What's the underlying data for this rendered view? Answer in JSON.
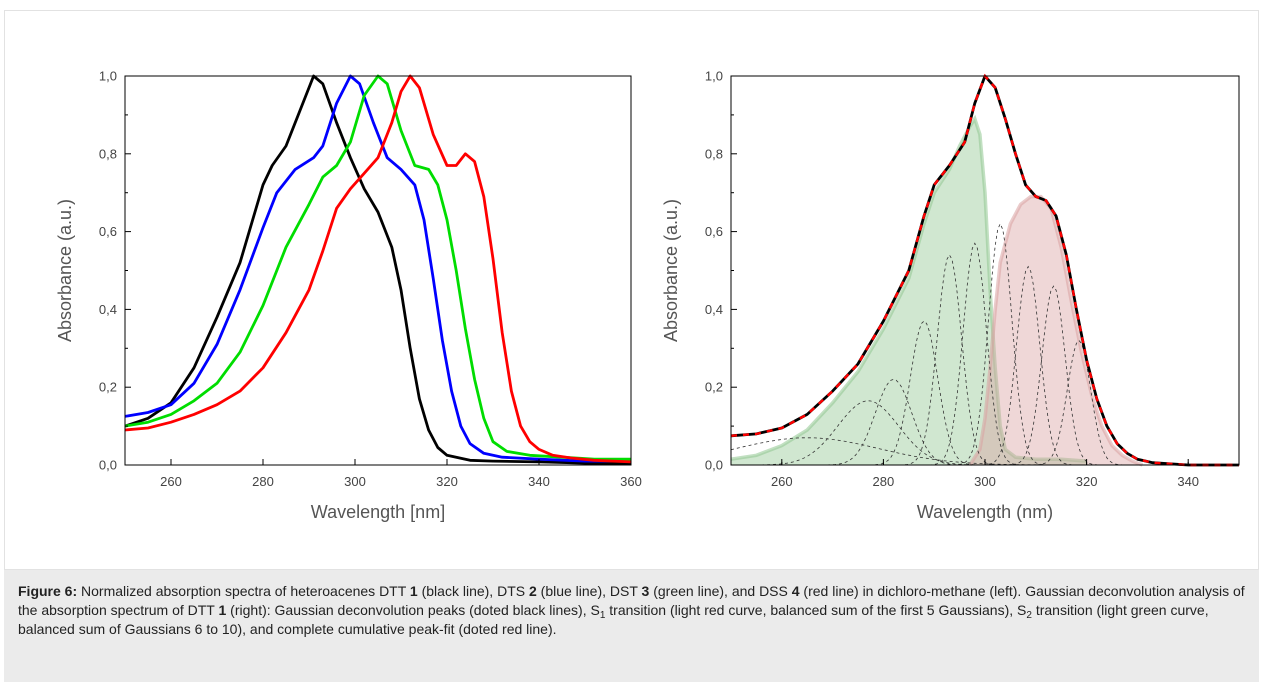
{
  "chart_data": [
    {
      "type": "line",
      "title": "",
      "xlabel": "Wavelength [nm]",
      "ylabel": "Absorbance (a.u.)",
      "xlim": [
        250,
        360
      ],
      "ylim": [
        0,
        1.0
      ],
      "x_ticks": [
        "260",
        "280",
        "300",
        "320",
        "340",
        "360"
      ],
      "y_ticks": [
        "0,0",
        "0,2",
        "0,4",
        "0,6",
        "0,8",
        "1,0"
      ],
      "grid": false,
      "series": [
        {
          "color": "#000000",
          "points": [
            [
              250,
              0.1
            ],
            [
              255,
              0.12
            ],
            [
              260,
              0.16
            ],
            [
              265,
              0.25
            ],
            [
              270,
              0.38
            ],
            [
              275,
              0.52
            ],
            [
              280,
              0.72
            ],
            [
              282,
              0.77
            ],
            [
              285,
              0.82
            ],
            [
              288,
              0.91
            ],
            [
              291,
              1.0
            ],
            [
              293,
              0.98
            ],
            [
              296,
              0.88
            ],
            [
              299,
              0.79
            ],
            [
              302,
              0.71
            ],
            [
              305,
              0.65
            ],
            [
              308,
              0.56
            ],
            [
              310,
              0.45
            ],
            [
              312,
              0.3
            ],
            [
              314,
              0.17
            ],
            [
              316,
              0.09
            ],
            [
              318,
              0.045
            ],
            [
              320,
              0.025
            ],
            [
              325,
              0.012
            ],
            [
              330,
              0.01
            ],
            [
              340,
              0.008
            ],
            [
              350,
              0.005
            ],
            [
              360,
              0.003
            ]
          ]
        },
        {
          "color": "#0000ff",
          "points": [
            [
              250,
              0.125
            ],
            [
              255,
              0.135
            ],
            [
              260,
              0.155
            ],
            [
              265,
              0.21
            ],
            [
              270,
              0.31
            ],
            [
              275,
              0.45
            ],
            [
              280,
              0.61
            ],
            [
              283,
              0.7
            ],
            [
              287,
              0.76
            ],
            [
              291,
              0.79
            ],
            [
              293,
              0.82
            ],
            [
              296,
              0.93
            ],
            [
              299,
              1.0
            ],
            [
              301,
              0.98
            ],
            [
              304,
              0.88
            ],
            [
              307,
              0.79
            ],
            [
              310,
              0.76
            ],
            [
              313,
              0.72
            ],
            [
              315,
              0.63
            ],
            [
              317,
              0.48
            ],
            [
              319,
              0.32
            ],
            [
              321,
              0.19
            ],
            [
              323,
              0.1
            ],
            [
              325,
              0.055
            ],
            [
              328,
              0.03
            ],
            [
              332,
              0.02
            ],
            [
              340,
              0.015
            ],
            [
              350,
              0.01
            ],
            [
              360,
              0.01
            ]
          ]
        },
        {
          "color": "#00dd00",
          "points": [
            [
              250,
              0.1
            ],
            [
              255,
              0.11
            ],
            [
              260,
              0.13
            ],
            [
              265,
              0.165
            ],
            [
              270,
              0.21
            ],
            [
              275,
              0.29
            ],
            [
              280,
              0.41
            ],
            [
              285,
              0.56
            ],
            [
              290,
              0.67
            ],
            [
              293,
              0.74
            ],
            [
              296,
              0.77
            ],
            [
              299,
              0.83
            ],
            [
              302,
              0.95
            ],
            [
              305,
              1.0
            ],
            [
              307,
              0.98
            ],
            [
              310,
              0.86
            ],
            [
              313,
              0.77
            ],
            [
              316,
              0.76
            ],
            [
              318,
              0.72
            ],
            [
              320,
              0.63
            ],
            [
              322,
              0.5
            ],
            [
              324,
              0.35
            ],
            [
              326,
              0.22
            ],
            [
              328,
              0.12
            ],
            [
              330,
              0.06
            ],
            [
              333,
              0.035
            ],
            [
              338,
              0.025
            ],
            [
              345,
              0.02
            ],
            [
              352,
              0.015
            ],
            [
              360,
              0.015
            ]
          ]
        },
        {
          "color": "#ff0000",
          "points": [
            [
              250,
              0.09
            ],
            [
              255,
              0.095
            ],
            [
              260,
              0.11
            ],
            [
              265,
              0.13
            ],
            [
              270,
              0.155
            ],
            [
              275,
              0.19
            ],
            [
              280,
              0.25
            ],
            [
              285,
              0.34
            ],
            [
              290,
              0.45
            ],
            [
              293,
              0.55
            ],
            [
              296,
              0.66
            ],
            [
              299,
              0.71
            ],
            [
              302,
              0.75
            ],
            [
              305,
              0.79
            ],
            [
              308,
              0.88
            ],
            [
              310,
              0.96
            ],
            [
              312,
              1.0
            ],
            [
              314,
              0.97
            ],
            [
              317,
              0.85
            ],
            [
              320,
              0.77
            ],
            [
              322,
              0.77
            ],
            [
              324,
              0.8
            ],
            [
              326,
              0.78
            ],
            [
              328,
              0.69
            ],
            [
              330,
              0.53
            ],
            [
              332,
              0.34
            ],
            [
              334,
              0.19
            ],
            [
              336,
              0.1
            ],
            [
              338,
              0.06
            ],
            [
              340,
              0.04
            ],
            [
              343,
              0.025
            ],
            [
              347,
              0.018
            ],
            [
              352,
              0.012
            ],
            [
              360,
              0.008
            ]
          ]
        }
      ]
    },
    {
      "type": "line",
      "title": "",
      "xlabel": "Wavelength (nm)",
      "ylabel": "Absorbance (a.u.)",
      "xlim": [
        250,
        350
      ],
      "ylim": [
        0,
        1.0
      ],
      "x_ticks": [
        "260",
        "280",
        "300",
        "320",
        "340"
      ],
      "y_ticks": [
        "0,0",
        "0,2",
        "0,4",
        "0,6",
        "0,8",
        "1,0"
      ],
      "grid": false,
      "series": [
        {
          "color": "#000000",
          "dashed_overlay_color": "#ff0000",
          "points": [
            [
              250,
              0.075
            ],
            [
              255,
              0.08
            ],
            [
              260,
              0.095
            ],
            [
              265,
              0.13
            ],
            [
              270,
              0.19
            ],
            [
              275,
              0.26
            ],
            [
              280,
              0.37
            ],
            [
              285,
              0.5
            ],
            [
              288,
              0.64
            ],
            [
              290,
              0.72
            ],
            [
              293,
              0.77
            ],
            [
              296,
              0.83
            ],
            [
              298,
              0.93
            ],
            [
              300,
              1.0
            ],
            [
              302,
              0.97
            ],
            [
              304,
              0.89
            ],
            [
              306,
              0.8
            ],
            [
              308,
              0.72
            ],
            [
              310,
              0.69
            ],
            [
              312,
              0.68
            ],
            [
              314,
              0.64
            ],
            [
              316,
              0.54
            ],
            [
              318,
              0.4
            ],
            [
              320,
              0.27
            ],
            [
              322,
              0.17
            ],
            [
              324,
              0.1
            ],
            [
              326,
              0.055
            ],
            [
              328,
              0.03
            ],
            [
              330,
              0.015
            ],
            [
              333,
              0.006
            ],
            [
              340,
              0.0
            ],
            [
              350,
              0.0
            ]
          ]
        }
      ],
      "filled_areas": [
        {
          "color": "#8fc68f",
          "points": [
            [
              250,
              0.015
            ],
            [
              255,
              0.025
            ],
            [
              260,
              0.05
            ],
            [
              265,
              0.09
            ],
            [
              270,
              0.16
            ],
            [
              275,
              0.24
            ],
            [
              280,
              0.35
            ],
            [
              285,
              0.48
            ],
            [
              288,
              0.62
            ],
            [
              290,
              0.7
            ],
            [
              293,
              0.76
            ],
            [
              295,
              0.82
            ],
            [
              297,
              0.87
            ],
            [
              298,
              0.89
            ],
            [
              299,
              0.85
            ],
            [
              300,
              0.7
            ],
            [
              301,
              0.45
            ],
            [
              302,
              0.25
            ],
            [
              303,
              0.1
            ],
            [
              304,
              0.04
            ],
            [
              306,
              0.02
            ],
            [
              310,
              0.015
            ],
            [
              315,
              0.015
            ],
            [
              320,
              0.01
            ]
          ]
        },
        {
          "color": "#d9a0a0",
          "points": [
            [
              297,
              0.0
            ],
            [
              299,
              0.04
            ],
            [
              300,
              0.12
            ],
            [
              301,
              0.25
            ],
            [
              302,
              0.4
            ],
            [
              303,
              0.52
            ],
            [
              305,
              0.62
            ],
            [
              307,
              0.67
            ],
            [
              309,
              0.69
            ],
            [
              311,
              0.69
            ],
            [
              313,
              0.66
            ],
            [
              315,
              0.56
            ],
            [
              317,
              0.42
            ],
            [
              319,
              0.29
            ],
            [
              321,
              0.18
            ],
            [
              323,
              0.1
            ],
            [
              325,
              0.05
            ],
            [
              327,
              0.025
            ],
            [
              329,
              0.01
            ],
            [
              331,
              0.0
            ]
          ]
        }
      ],
      "gaussians": [
        {
          "center": 265,
          "amplitude": 0.07,
          "width": 14
        },
        {
          "center": 277,
          "amplitude": 0.165,
          "width": 6.0
        },
        {
          "center": 282,
          "amplitude": 0.22,
          "width": 3.6
        },
        {
          "center": 288,
          "amplitude": 0.37,
          "width": 2.7
        },
        {
          "center": 293,
          "amplitude": 0.54,
          "width": 2.4
        },
        {
          "center": 298,
          "amplitude": 0.57,
          "width": 2.3
        },
        {
          "center": 303,
          "amplitude": 0.62,
          "width": 2.3
        },
        {
          "center": 308.5,
          "amplitude": 0.51,
          "width": 2.3
        },
        {
          "center": 313.5,
          "amplitude": 0.46,
          "width": 2.3
        },
        {
          "center": 318.5,
          "amplitude": 0.32,
          "width": 2.3
        }
      ]
    }
  ],
  "caption": {
    "lead": "Figure 6:",
    "text_a": " Normalized absorption spectra of heteroacenes DTT ",
    "n1": "1",
    "text_b": " (black line), DTS ",
    "n2": "2",
    "text_c": " (blue line), DST ",
    "n3": "3",
    "text_d": " (green line), and DSS ",
    "n4": "4",
    "text_e": " (red line) in dichloro-methane (left). Gaussian deconvolution analysis of the absorption spectrum of DTT ",
    "n5": "1",
    "text_f": " (right): Gaussian deconvolution peaks (doted black lines), S",
    "sub1": "1",
    "text_g": " transition (light red curve, balanced sum of the first 5 Gaussians), S",
    "sub2": "2",
    "text_h": " transition (light green curve, balanced sum of Gaussians 6 to 10), and complete cumulative peak-fit (doted red line)."
  }
}
